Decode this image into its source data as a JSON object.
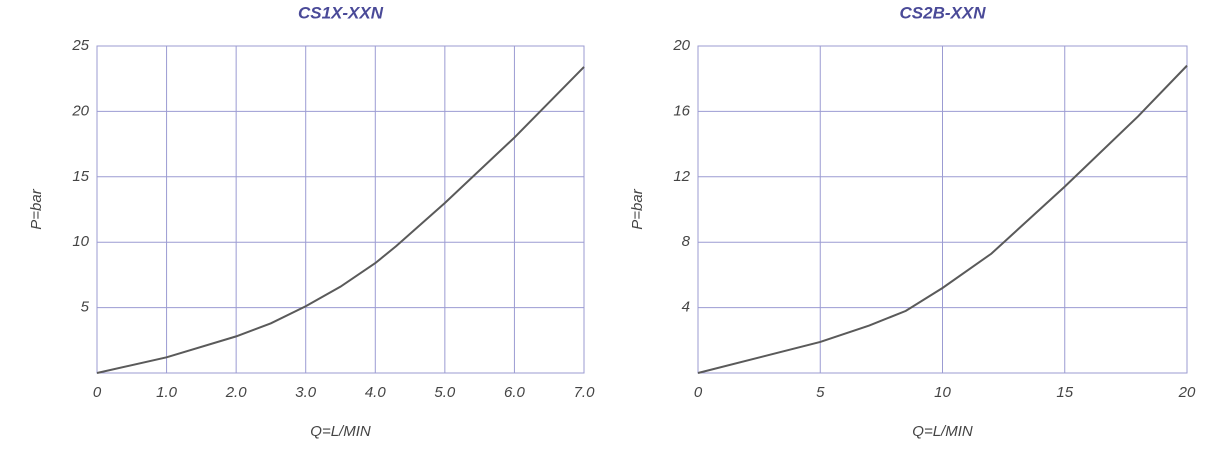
{
  "chart_data": [
    {
      "type": "line",
      "title": "CS1X-XXN",
      "xlabel": "Q=L/MIN",
      "ylabel": "P=bar",
      "x": [
        0,
        1,
        2,
        2.5,
        3,
        3.5,
        4,
        4.3,
        5,
        6,
        7
      ],
      "values": [
        0,
        1.2,
        2.8,
        3.8,
        5.1,
        6.6,
        8.4,
        9.7,
        13,
        18,
        23.4
      ],
      "color": "#5a5a5a",
      "xlim": [
        0,
        7
      ],
      "ylim": [
        0,
        25
      ],
      "xticks": [
        0,
        {
          "value": 1,
          "label": "1.0"
        },
        {
          "value": 2,
          "label": "2.0"
        },
        {
          "value": 3,
          "label": "3.0"
        },
        {
          "value": 4,
          "label": "4.0"
        },
        {
          "value": 5,
          "label": "5.0"
        },
        {
          "value": 6,
          "label": "6.0"
        },
        {
          "value": 7,
          "label": "7.0"
        }
      ],
      "yticks": [
        5,
        10,
        15,
        20,
        25
      ],
      "grid": true
    },
    {
      "type": "line",
      "title": "CS2B-XXN",
      "xlabel": "Q=L/MIN",
      "ylabel": "P=bar",
      "x": [
        0,
        5,
        7,
        8.5,
        10,
        12,
        15,
        18,
        20
      ],
      "values": [
        0,
        1.9,
        2.9,
        3.8,
        5.2,
        7.3,
        11.4,
        15.7,
        18.8
      ],
      "color": "#5a5a5a",
      "xlim": [
        0,
        20
      ],
      "ylim": [
        0,
        20
      ],
      "xticks": [
        0,
        5,
        10,
        15,
        20
      ],
      "yticks": [
        4,
        8,
        12,
        16,
        20
      ],
      "grid": true
    }
  ]
}
